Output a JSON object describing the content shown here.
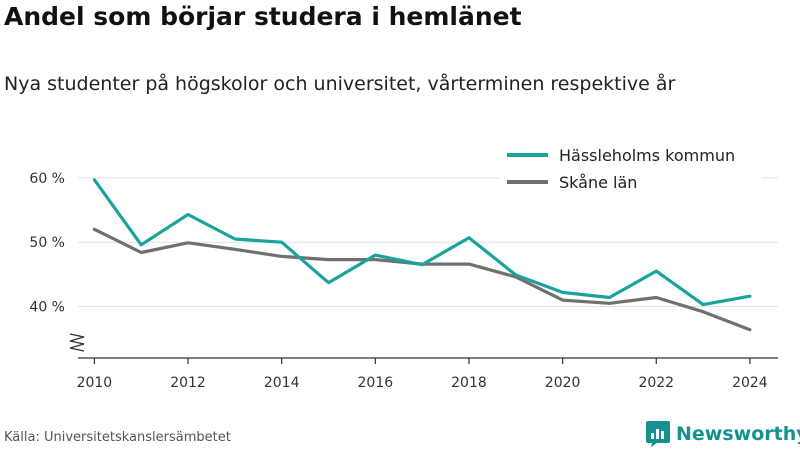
{
  "title": "Andel som börjar studera i hemlänet",
  "subtitle": "Nya studenter på högskolor och universitet, vårterminen respektive år",
  "source": "Källa: Universitetskanslersämbetet",
  "brand": "Newsworthy",
  "colors": {
    "hassleholm": "#1aa39b",
    "skane": "#707070",
    "brand": "#15928f"
  },
  "chart_data": {
    "type": "line",
    "x": [
      2010,
      2011,
      2012,
      2013,
      2014,
      2015,
      2016,
      2017,
      2018,
      2019,
      2020,
      2021,
      2022,
      2023,
      2024
    ],
    "series": [
      {
        "name": "Hässleholms kommun",
        "values": [
          59.7,
          49.6,
          54.3,
          50.5,
          50.0,
          43.7,
          48.0,
          46.5,
          50.7,
          44.9,
          42.2,
          41.4,
          45.5,
          40.3,
          41.6
        ]
      },
      {
        "name": "Skåne län",
        "values": [
          52.0,
          48.4,
          49.9,
          48.9,
          47.8,
          47.3,
          47.3,
          46.6,
          46.6,
          44.6,
          41.0,
          40.5,
          41.4,
          39.2,
          36.4
        ]
      }
    ],
    "xticks": [
      "2010",
      "2012",
      "2014",
      "2016",
      "2018",
      "2020",
      "2022",
      "2024"
    ],
    "yticks": [
      "40 %",
      "50 %",
      "60 %"
    ],
    "ytick_values": [
      40,
      50,
      60
    ],
    "ylim": [
      32,
      62
    ],
    "xlim": [
      2009.65,
      2024.6
    ],
    "xlabel": "",
    "ylabel": "",
    "grid": true,
    "legend_position": "top-right"
  }
}
